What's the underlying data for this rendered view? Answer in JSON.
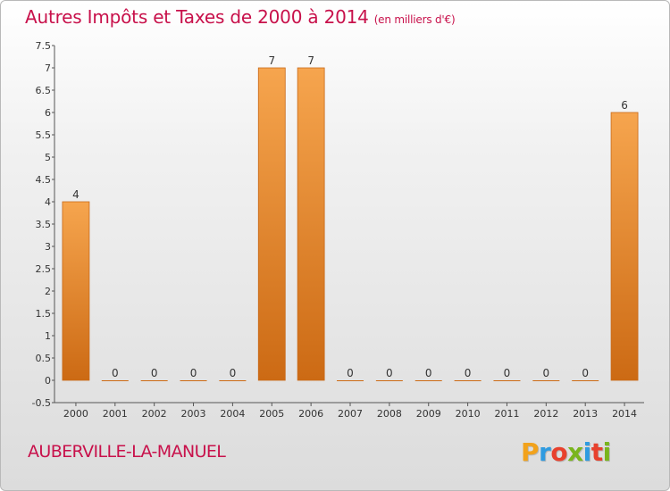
{
  "title": "Autres Impôts et Taxes de 2000 à 2014",
  "unit": "(en milliers d'€)",
  "commune": "AUBERVILLE-LA-MANUEL",
  "logo": {
    "letters": [
      "P",
      "r",
      "o",
      "x",
      "i",
      "t",
      "i"
    ],
    "colors": [
      "#f2a21b",
      "#2f9be0",
      "#e8412d",
      "#7ab51d",
      "#2f9be0",
      "#e8412d",
      "#7ab51d"
    ]
  },
  "colors": {
    "title": "#c8114b",
    "bar_top": "#f6a54e",
    "bar_bottom": "#cc6a14"
  },
  "chart_data": {
    "type": "bar",
    "categories": [
      "2000",
      "2001",
      "2002",
      "2003",
      "2004",
      "2005",
      "2006",
      "2007",
      "2008",
      "2009",
      "2010",
      "2011",
      "2012",
      "2013",
      "2014"
    ],
    "values": [
      4,
      0,
      0,
      0,
      0,
      7,
      7,
      0,
      0,
      0,
      0,
      0,
      0,
      0,
      6
    ],
    "data_labels": [
      "4",
      "0",
      "0",
      "0",
      "0",
      "7",
      "7",
      "0",
      "0",
      "0",
      "0",
      "0",
      "0",
      "0",
      "6"
    ],
    "yticks": [
      "-0.5",
      "0",
      "0.5",
      "1",
      "1.5",
      "2",
      "2.5",
      "3",
      "3.5",
      "4",
      "4.5",
      "5",
      "5.5",
      "6",
      "6.5",
      "7",
      "7.5"
    ],
    "ylim": [
      -0.5,
      7.5
    ],
    "grid": false
  }
}
